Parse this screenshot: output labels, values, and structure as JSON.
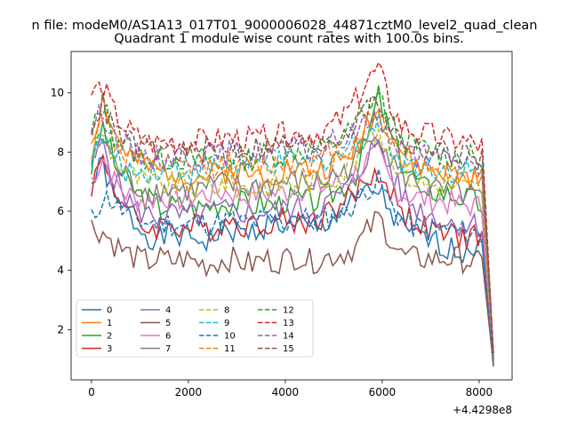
{
  "figure": {
    "suptitle": "n file: modeM0/AS1A13_017T01_9000006028_44871cztM0_level2_quad_clean",
    "title": "Quadrant 1 module wise count rates with 100.0s bins."
  },
  "chart_data": {
    "type": "line",
    "title": "Quadrant 1 module wise count rates with 100.0s bins.",
    "xlabel": "",
    "ylabel": "",
    "x_offset_label": "+4.4298e8",
    "xlim": [
      -420,
      8680
    ],
    "ylim": [
      0.3,
      11.4
    ],
    "xticks": [
      0,
      2000,
      4000,
      6000,
      8000
    ],
    "yticks": [
      2,
      4,
      6,
      8,
      10
    ],
    "grid": false,
    "legend": {
      "position": "lower-left",
      "ncol": 4
    },
    "series": [
      {
        "name": "0",
        "color": "#1f77b4",
        "style": "solid",
        "seed": 1,
        "values": [
          6.9,
          7.6,
          6.3,
          6.0,
          5.5,
          5.2,
          5.0,
          5.3,
          5.1,
          5.1,
          5.0,
          5.2,
          5.4,
          5.2,
          5.3,
          5.5,
          5.6,
          5.5,
          5.6,
          5.4,
          5.5,
          5.8,
          6.0,
          6.3,
          6.6,
          6.7,
          6.0,
          5.4,
          5.2,
          5.1,
          4.9,
          4.8,
          4.6,
          4.8,
          5.2,
          0.75
        ]
      },
      {
        "name": "1",
        "color": "#ff7f0e",
        "style": "solid",
        "seed": 2,
        "values": [
          8.4,
          9.8,
          8.6,
          8.0,
          7.6,
          7.4,
          7.3,
          7.4,
          7.3,
          7.2,
          7.2,
          7.3,
          7.4,
          7.3,
          7.2,
          7.3,
          7.3,
          7.5,
          7.4,
          7.4,
          7.4,
          7.6,
          7.7,
          8.2,
          9.0,
          9.3,
          8.8,
          8.0,
          7.6,
          7.4,
          7.4,
          7.3,
          7.2,
          7.1,
          7.0,
          1.1
        ]
      },
      {
        "name": "2",
        "color": "#2ca02c",
        "style": "solid",
        "seed": 3,
        "values": [
          7.5,
          8.9,
          7.6,
          7.0,
          6.6,
          6.4,
          6.2,
          6.2,
          6.2,
          6.1,
          6.2,
          6.3,
          6.3,
          6.3,
          6.2,
          6.3,
          6.2,
          6.4,
          6.4,
          6.3,
          6.4,
          6.6,
          6.9,
          7.3,
          8.4,
          9.9,
          8.6,
          7.7,
          7.2,
          6.8,
          6.7,
          6.6,
          6.5,
          6.4,
          6.2,
          1.0
        ]
      },
      {
        "name": "3",
        "color": "#d62728",
        "style": "solid",
        "seed": 4,
        "values": [
          6.9,
          7.8,
          6.8,
          6.1,
          5.6,
          5.4,
          5.5,
          5.6,
          5.4,
          5.5,
          5.4,
          5.5,
          5.7,
          5.6,
          5.5,
          5.6,
          5.7,
          5.7,
          5.6,
          5.7,
          5.8,
          6.1,
          6.3,
          6.6,
          7.1,
          7.3,
          6.7,
          6.0,
          5.7,
          5.4,
          5.3,
          5.2,
          5.1,
          5.2,
          5.1,
          0.8
        ]
      },
      {
        "name": "4",
        "color": "#9467bd",
        "style": "solid",
        "seed": 5,
        "values": [
          7.5,
          8.4,
          7.1,
          6.5,
          6.0,
          5.9,
          5.8,
          5.9,
          5.8,
          5.9,
          5.9,
          6.0,
          6.0,
          6.0,
          5.9,
          6.0,
          6.0,
          6.1,
          6.1,
          6.0,
          6.2,
          6.4,
          6.7,
          7.1,
          7.9,
          8.4,
          7.4,
          6.6,
          6.2,
          6.0,
          5.8,
          5.6,
          5.6,
          5.6,
          5.5,
          0.9
        ]
      },
      {
        "name": "5",
        "color": "#8c564b",
        "style": "solid",
        "seed": 6,
        "values": [
          5.5,
          5.3,
          4.9,
          4.6,
          4.4,
          4.3,
          4.4,
          4.3,
          4.4,
          4.3,
          4.2,
          4.3,
          4.4,
          4.3,
          4.2,
          4.4,
          4.3,
          4.4,
          4.5,
          4.3,
          4.4,
          4.5,
          4.6,
          4.8,
          5.3,
          5.8,
          5.1,
          4.5,
          4.4,
          4.4,
          4.4,
          4.4,
          4.4,
          4.3,
          4.2,
          0.8
        ]
      },
      {
        "name": "6",
        "color": "#e377c2",
        "style": "solid",
        "seed": 7,
        "values": [
          7.1,
          7.8,
          7.0,
          6.6,
          6.4,
          6.4,
          6.5,
          6.5,
          6.4,
          6.5,
          6.6,
          6.6,
          6.7,
          6.5,
          6.6,
          6.6,
          6.6,
          6.7,
          6.8,
          6.7,
          6.8,
          6.9,
          7.0,
          7.3,
          7.7,
          7.9,
          7.0,
          6.6,
          6.5,
          6.4,
          6.4,
          6.3,
          6.2,
          6.2,
          6.1,
          1.0
        ]
      },
      {
        "name": "7",
        "color": "#7f7f7f",
        "style": "solid",
        "seed": 8,
        "values": [
          7.7,
          8.5,
          7.6,
          7.2,
          6.8,
          6.7,
          6.7,
          6.8,
          6.7,
          6.7,
          6.8,
          6.9,
          6.9,
          6.8,
          6.8,
          6.9,
          6.9,
          7.0,
          7.0,
          6.9,
          7.0,
          7.2,
          7.3,
          7.7,
          8.3,
          8.7,
          7.8,
          7.2,
          7.0,
          6.8,
          6.7,
          6.6,
          6.6,
          6.5,
          6.4,
          1.0
        ]
      },
      {
        "name": "8",
        "color": "#bcbd22",
        "style": "dashed",
        "seed": 9,
        "values": [
          8.0,
          8.7,
          7.8,
          7.4,
          7.1,
          6.9,
          6.9,
          6.9,
          6.9,
          6.8,
          6.9,
          6.9,
          7.0,
          6.8,
          6.8,
          6.9,
          6.9,
          7.0,
          7.0,
          7.0,
          7.0,
          7.2,
          7.4,
          7.8,
          8.4,
          8.8,
          8.0,
          7.4,
          7.1,
          6.9,
          6.9,
          6.9,
          6.8,
          6.8,
          6.7,
          1.0
        ]
      },
      {
        "name": "9",
        "color": "#17becf",
        "style": "dashed",
        "seed": 10,
        "values": [
          7.9,
          8.5,
          7.7,
          7.4,
          7.3,
          7.4,
          7.4,
          7.5,
          7.4,
          7.4,
          7.5,
          7.5,
          7.6,
          7.5,
          7.5,
          7.6,
          7.6,
          7.6,
          7.7,
          7.6,
          7.7,
          7.9,
          8.0,
          8.3,
          8.7,
          9.1,
          8.2,
          7.7,
          7.6,
          7.5,
          7.5,
          7.4,
          7.4,
          7.3,
          7.3,
          1.1
        ]
      },
      {
        "name": "10",
        "color": "#1f77b4",
        "style": "dashed",
        "seed": 11,
        "values": [
          5.7,
          6.5,
          6.3,
          5.9,
          5.7,
          5.6,
          5.6,
          5.6,
          5.5,
          5.6,
          5.6,
          5.6,
          5.7,
          5.6,
          5.6,
          5.7,
          5.7,
          5.6,
          5.8,
          5.7,
          5.7,
          5.9,
          6.0,
          6.3,
          6.8,
          7.0,
          6.3,
          5.7,
          5.5,
          5.4,
          5.4,
          5.4,
          5.3,
          5.3,
          5.2,
          0.9
        ]
      },
      {
        "name": "11",
        "color": "#ff7f0e",
        "style": "dashed",
        "seed": 12,
        "values": [
          8.5,
          9.4,
          8.3,
          7.9,
          7.6,
          7.5,
          7.5,
          7.5,
          7.4,
          7.5,
          7.5,
          7.6,
          7.6,
          7.5,
          7.5,
          7.6,
          7.6,
          7.7,
          7.7,
          7.6,
          7.7,
          7.9,
          8.1,
          8.4,
          9.0,
          9.4,
          8.5,
          7.8,
          7.6,
          7.5,
          7.4,
          7.3,
          7.3,
          7.2,
          7.2,
          1.1
        ]
      },
      {
        "name": "12",
        "color": "#2ca02c",
        "style": "dashed",
        "seed": 13,
        "values": [
          8.6,
          9.6,
          8.6,
          8.2,
          7.9,
          7.8,
          7.7,
          7.8,
          7.8,
          7.7,
          7.8,
          7.8,
          7.9,
          7.8,
          7.8,
          7.9,
          7.9,
          8.0,
          8.1,
          8.0,
          8.1,
          8.3,
          8.5,
          8.9,
          9.6,
          10.0,
          9.0,
          8.4,
          8.2,
          8.1,
          8.0,
          7.9,
          7.9,
          7.8,
          7.7,
          1.2
        ]
      },
      {
        "name": "13",
        "color": "#d62728",
        "style": "dashed",
        "seed": 14,
        "values": [
          10.0,
          10.2,
          9.3,
          8.8,
          8.5,
          8.3,
          8.3,
          8.4,
          8.3,
          8.3,
          8.4,
          8.4,
          8.5,
          8.4,
          8.4,
          8.5,
          8.5,
          8.6,
          8.6,
          8.6,
          8.7,
          8.9,
          9.2,
          9.7,
          10.4,
          10.8,
          9.6,
          8.9,
          8.7,
          8.6,
          8.5,
          8.4,
          8.4,
          8.3,
          8.2,
          1.2
        ]
      },
      {
        "name": "14",
        "color": "#9467bd",
        "style": "dashed",
        "seed": 15,
        "values": [
          8.8,
          9.4,
          8.5,
          8.2,
          7.9,
          7.9,
          7.8,
          7.9,
          7.9,
          7.8,
          7.9,
          7.9,
          8.0,
          7.9,
          7.9,
          8.0,
          8.0,
          8.0,
          8.1,
          8.0,
          8.1,
          8.3,
          8.4,
          8.7,
          9.0,
          9.3,
          8.5,
          8.1,
          7.9,
          7.8,
          7.8,
          7.7,
          7.7,
          7.6,
          7.5,
          1.1
        ]
      },
      {
        "name": "15",
        "color": "#8c564b",
        "style": "dashed",
        "seed": 16,
        "values": [
          9.0,
          9.6,
          8.7,
          8.4,
          8.2,
          8.1,
          8.0,
          8.1,
          8.0,
          8.0,
          8.1,
          8.1,
          8.2,
          8.1,
          8.1,
          8.2,
          8.2,
          8.3,
          8.3,
          8.2,
          8.3,
          8.5,
          8.7,
          9.0,
          9.5,
          9.7,
          8.9,
          8.4,
          8.2,
          8.1,
          8.0,
          8.0,
          7.9,
          7.9,
          7.8,
          1.1
        ]
      }
    ]
  }
}
